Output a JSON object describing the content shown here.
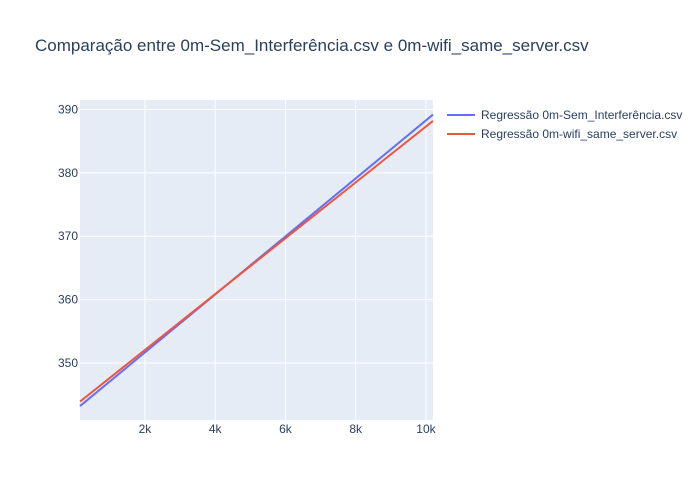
{
  "chart_data": {
    "type": "line",
    "title": "Comparação entre 0m-Sem_Interferência.csv e 0m-wifi_same_server.csv",
    "xlabel": "",
    "ylabel": "",
    "xlim": [
      150,
      10200
    ],
    "ylim": [
      341,
      391.5
    ],
    "x_ticks": [
      2000,
      4000,
      6000,
      8000,
      10000
    ],
    "x_tick_labels": [
      "2k",
      "4k",
      "6k",
      "8k",
      "10k"
    ],
    "y_ticks": [
      350,
      360,
      370,
      380,
      390
    ],
    "y_tick_labels": [
      "350",
      "360",
      "370",
      "380",
      "390"
    ],
    "grid": true,
    "legend_position": "top-right",
    "series": [
      {
        "name": "Regressão 0m-Sem_Interferência.csv",
        "color": "#636efa",
        "x": [
          150,
          10200
        ],
        "y": [
          343.2,
          389.2
        ]
      },
      {
        "name": "Regressão 0m-wifi_same_server.csv",
        "color": "#ef553b",
        "x": [
          150,
          10200
        ],
        "y": [
          343.9,
          388.2
        ]
      }
    ]
  }
}
